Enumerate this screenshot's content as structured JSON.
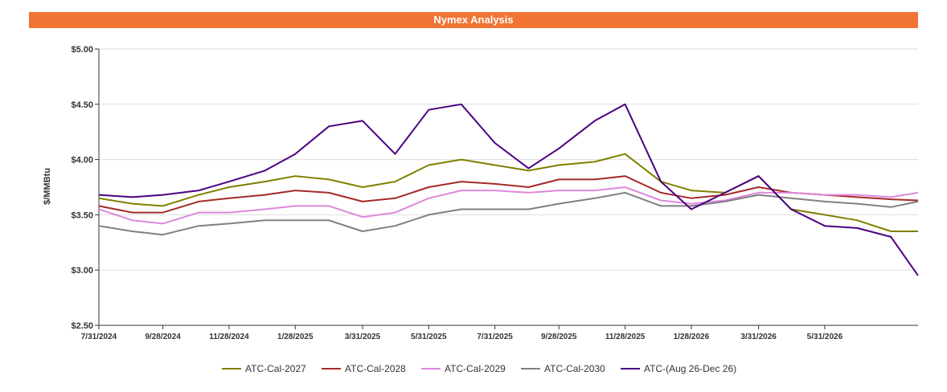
{
  "chart_data": {
    "type": "line",
    "title": "Nymex Analysis",
    "xlabel": "",
    "ylabel": "$/MMBtu",
    "ylim": [
      2.5,
      5.0
    ],
    "y_ticks": [
      "$2.50",
      "$3.00",
      "$3.50",
      "$4.00",
      "$4.50",
      "$5.00"
    ],
    "y_tick_values": [
      2.5,
      3.0,
      3.5,
      4.0,
      4.5,
      5.0
    ],
    "x_ticks": [
      "7/31/2024",
      "9/28/2024",
      "11/28/2024",
      "1/28/2025",
      "3/31/2025",
      "5/31/2025",
      "7/31/2025",
      "9/28/2025",
      "11/28/2025",
      "1/28/2026",
      "3/31/2026",
      "5/31/2026"
    ],
    "x_range": [
      "7/31/2024",
      "8/25/2026"
    ],
    "grid": "horizontal",
    "legend_position": "bottom",
    "x": [
      "7/31/2024",
      "8/31/2024",
      "9/28/2024",
      "10/31/2024",
      "11/28/2024",
      "12/31/2024",
      "1/28/2025",
      "2/28/2025",
      "3/31/2025",
      "4/30/2025",
      "5/31/2025",
      "6/30/2025",
      "7/31/2025",
      "8/31/2025",
      "9/28/2025",
      "10/31/2025",
      "11/28/2025",
      "12/31/2025",
      "1/28/2026",
      "2/28/2026",
      "3/31/2026",
      "4/30/2026",
      "5/31/2026",
      "6/30/2026",
      "7/31/2026",
      "8/25/2026"
    ],
    "series": [
      {
        "name": "ATC-Cal-2027",
        "color": "#808000",
        "values": [
          3.65,
          3.6,
          3.58,
          3.68,
          3.75,
          3.8,
          3.85,
          3.82,
          3.75,
          3.8,
          3.95,
          4.0,
          3.95,
          3.9,
          3.95,
          3.98,
          4.05,
          3.8,
          3.72,
          3.7,
          3.85,
          3.55,
          3.5,
          3.45,
          3.35,
          3.35
        ]
      },
      {
        "name": "ATC-Cal-2028",
        "color": "#a52a2a",
        "values": [
          3.58,
          3.52,
          3.52,
          3.62,
          3.65,
          3.68,
          3.72,
          3.7,
          3.62,
          3.65,
          3.75,
          3.8,
          3.78,
          3.75,
          3.82,
          3.82,
          3.85,
          3.7,
          3.65,
          3.68,
          3.75,
          3.7,
          3.68,
          3.66,
          3.64,
          3.63
        ]
      },
      {
        "name": "ATC-Cal-2029",
        "color": "#dd88dd",
        "values": [
          3.55,
          3.45,
          3.42,
          3.52,
          3.52,
          3.55,
          3.58,
          3.58,
          3.48,
          3.52,
          3.65,
          3.72,
          3.72,
          3.7,
          3.72,
          3.72,
          3.75,
          3.63,
          3.6,
          3.63,
          3.7,
          3.7,
          3.68,
          3.68,
          3.66,
          3.7
        ]
      },
      {
        "name": "ATC-Cal-2030",
        "color": "#808080",
        "values": [
          3.4,
          3.35,
          3.32,
          3.4,
          3.42,
          3.45,
          3.45,
          3.45,
          3.35,
          3.4,
          3.5,
          3.55,
          3.55,
          3.55,
          3.6,
          3.65,
          3.7,
          3.58,
          3.58,
          3.62,
          3.68,
          3.65,
          3.62,
          3.6,
          3.57,
          3.62
        ]
      },
      {
        "name": "ATC-(Aug 26-Dec 26)",
        "color": "#4b0082",
        "values": [
          3.68,
          3.66,
          3.68,
          3.72,
          3.8,
          3.9,
          4.05,
          4.3,
          4.35,
          4.05,
          4.45,
          4.5,
          4.15,
          3.92,
          4.1,
          4.35,
          4.5,
          3.8,
          3.55,
          3.7,
          3.85,
          3.55,
          3.4,
          3.38,
          3.3,
          2.95
        ]
      }
    ]
  }
}
